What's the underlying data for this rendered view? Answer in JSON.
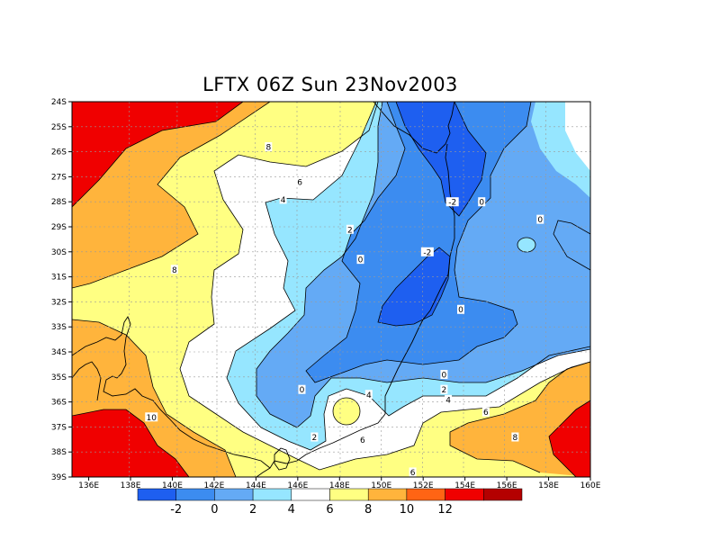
{
  "title": "LFTX 06Z Sun 23Nov2003",
  "lat_ticks": [
    "24S",
    "25S",
    "26S",
    "27S",
    "28S",
    "29S",
    "30S",
    "31S",
    "32S",
    "33S",
    "34S",
    "35S",
    "36S",
    "37S",
    "38S",
    "39S"
  ],
  "lon_ticks": [
    "136E",
    "138E",
    "140E",
    "142E",
    "144E",
    "146E",
    "148E",
    "150E",
    "152E",
    "154E",
    "156E",
    "158E",
    "160E"
  ],
  "colorbar": {
    "colors": [
      "#1e5ff0",
      "#3c8cf0",
      "#64aaf5",
      "#96e6ff",
      "#ffffff",
      "#ffff82",
      "#ffb43c",
      "#ff6414",
      "#f00000",
      "#b40000"
    ],
    "labels": [
      "-2",
      "0",
      "2",
      "4",
      "6",
      "8",
      "10",
      "12"
    ]
  },
  "contour_labels": [
    {
      "text": "-2",
      "lon": 153.4,
      "lat": -28.0
    },
    {
      "text": "-2",
      "lon": 152.2,
      "lat": -30.0
    },
    {
      "text": "0",
      "lon": 154.8,
      "lat": -28.0
    },
    {
      "text": "0",
      "lon": 157.6,
      "lat": -28.7
    },
    {
      "text": "0",
      "lon": 153.8,
      "lat": -32.3
    },
    {
      "text": "0",
      "lon": 149.0,
      "lat": -30.3
    },
    {
      "text": "0",
      "lon": 153.0,
      "lat": -34.9
    },
    {
      "text": "0",
      "lon": 146.2,
      "lat": -35.5
    },
    {
      "text": "2",
      "lon": 148.5,
      "lat": -29.1
    },
    {
      "text": "2",
      "lon": 153.0,
      "lat": -35.5
    },
    {
      "text": "2",
      "lon": 146.8,
      "lat": -37.4
    },
    {
      "text": "4",
      "lon": 145.3,
      "lat": -27.9
    },
    {
      "text": "4",
      "lon": 153.2,
      "lat": -35.9
    },
    {
      "text": "4",
      "lon": 149.4,
      "lat": -35.7
    },
    {
      "text": "6",
      "lon": 146.1,
      "lat": -27.2
    },
    {
      "text": "6",
      "lon": 155.0,
      "lat": -36.4
    },
    {
      "text": "6",
      "lon": 151.5,
      "lat": -38.8
    },
    {
      "text": "6",
      "lon": 149.1,
      "lat": -37.5
    },
    {
      "text": "8",
      "lon": 144.6,
      "lat": -25.8
    },
    {
      "text": "8",
      "lon": 140.1,
      "lat": -30.7
    },
    {
      "text": "8",
      "lon": 156.4,
      "lat": -37.4
    },
    {
      "text": "10",
      "lon": 139.0,
      "lat": -36.6
    }
  ]
}
